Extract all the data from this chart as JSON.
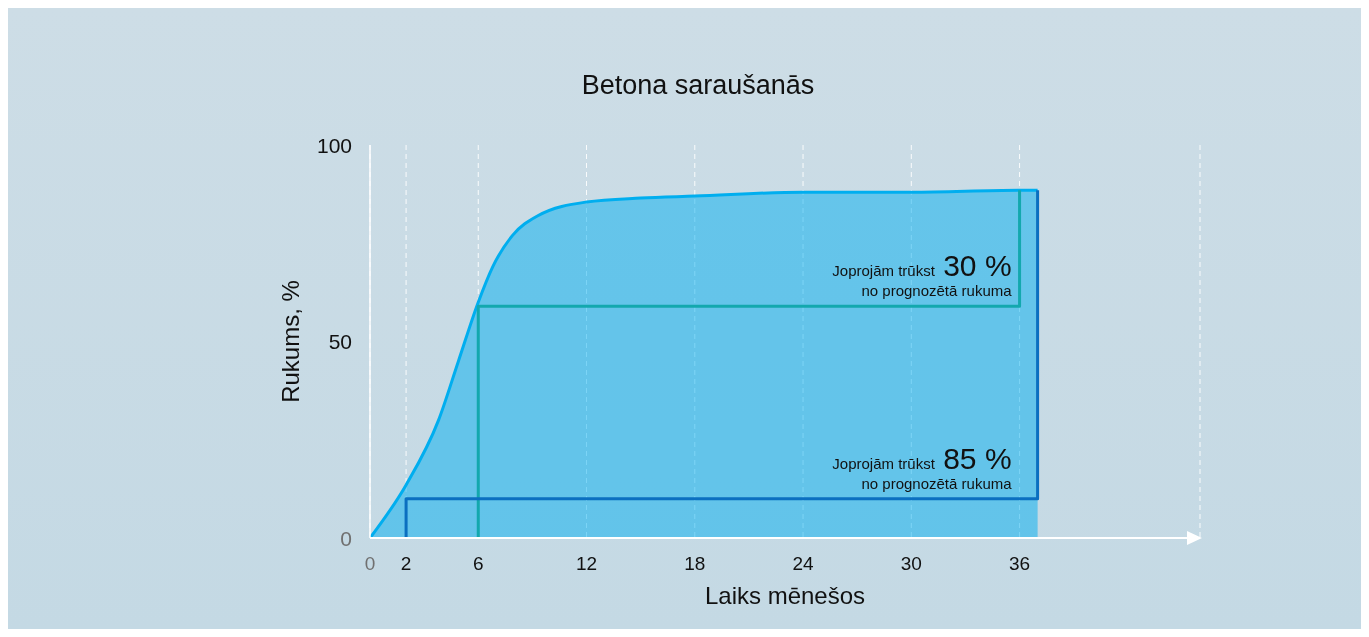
{
  "chart_data": {
    "type": "area",
    "title": "Betona saraušanās",
    "xlabel": "Laiks mēnešos",
    "ylabel": "Rukums, %",
    "x": [
      0,
      2,
      3.8,
      4.9,
      6,
      6.8,
      7.9,
      9.3,
      12,
      15,
      18,
      24,
      30,
      36,
      37
    ],
    "xlim": [
      0,
      46
    ],
    "xticks": [
      0,
      2,
      6,
      12,
      18,
      24,
      30,
      36
    ],
    "ylim": [
      0,
      100
    ],
    "yticks": [
      0,
      50,
      100
    ],
    "grid": "x",
    "marker": "none",
    "series": [
      {
        "color": "#00aeef",
        "values": [
          0,
          13.5,
          30,
          45,
          60,
          69,
          77,
          82,
          85.5,
          86.5,
          87,
          88,
          88,
          88.5,
          88.5
        ]
      },
      {
        "type": "line",
        "color": "#13a8ae",
        "x": [
          6,
          6,
          36,
          36
        ],
        "values": [
          0,
          59,
          59,
          88.5
        ]
      },
      {
        "type": "line",
        "color": "#0b6fc0",
        "x": [
          2,
          2,
          37,
          37
        ],
        "values": [
          0,
          10,
          10,
          88.5
        ]
      }
    ],
    "annotations": [
      {
        "text": "Joprojām trūkst 30 %\nno prognozētā rukuma",
        "x": 36,
        "y": 59
      },
      {
        "text": "Joprojām trūkst 85 %\nno prognozētā rukuma",
        "x": 36,
        "y": 10
      }
    ]
  }
}
